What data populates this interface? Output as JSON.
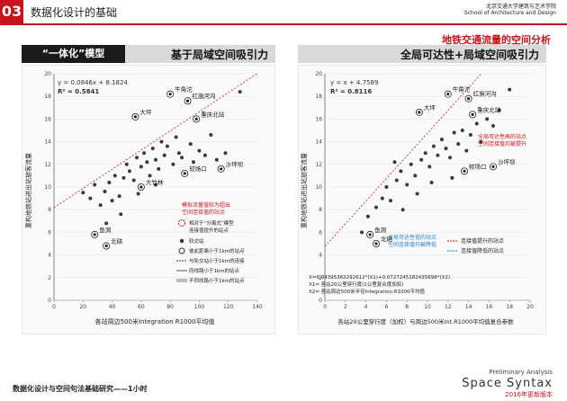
{
  "header": {
    "badge": "03",
    "title": "数据化设计的基础",
    "school_cn": "北京交通大学建筑与艺术学院",
    "school_en": "School of Architecture and Design"
  },
  "subtitle": "地铁交通流量的空间分析",
  "left_panel": {
    "tag": "“一体化”模型",
    "heading": "基于局域空间吸引力",
    "equation": "y = 0.0846x + 8.1824",
    "r2": "R² = 0.5841",
    "xlabel": "各站周边500米Integration R1000平均值",
    "ylabel": "重构地铁站进出站旅客流量",
    "annotation": [
      "模拟流量值较为超出",
      "空间连接值的站点"
    ],
    "legend": [
      "相对于“分离式”模型",
      "连接值提升的站点",
      "轨交站",
      "彼此距离小于1km的站点",
      "与轨交站小于1km的连接",
      "同线路小于1km的站点",
      "不同线路小于1km的站点"
    ]
  },
  "right_panel": {
    "heading": "全局可达性+局域空间吸引力",
    "equation": "y = x + 4.7589",
    "r2": "R² = 0.8116",
    "xlabel": "各站20公里穿行度（加权）与周边500米Int.R1000平均值复合参数",
    "ylabel": "重构地铁站进出站旅客流量",
    "ann_top": [
      "全局可达性高的站点",
      "空间连接值均被提升"
    ],
    "ann_bottom": [
      "全局可达性低的站点",
      "空间连接值均被降低"
    ],
    "legend_up": "连接值提升的站点",
    "legend_down": "连接值降低的站点",
    "formula": [
      "X=6.94395362292612*(X1)+0.0727245182435698*(X2)",
      "X1= 各站20公里穿行度(1公里复合度加权)",
      "X2= 各站周边500米半径Integration R1000平均值"
    ]
  },
  "footer": {
    "left": "数据化设计与空间句法基础研究——1小时",
    "prelim": "Preliminary Analysis",
    "brand": "Space Syntax",
    "version": "2016年更新版本"
  },
  "chart_data": [
    {
      "type": "scatter",
      "title": "基于局域空间吸引力",
      "xlabel": "各站周边500米Integration R1000平均值",
      "ylabel": "重构地铁站进出站旅客流量",
      "xlim": [
        0,
        140
      ],
      "ylim": [
        0,
        20
      ],
      "xticks": [
        0,
        20,
        40,
        60,
        80,
        100,
        120,
        140
      ],
      "yticks": [
        0,
        2,
        4,
        6,
        8,
        10,
        12,
        14,
        16,
        18,
        20
      ],
      "trendline": {
        "slope": 0.0846,
        "intercept": 8.1824
      },
      "labels": [
        {
          "text": "牛角沱",
          "x": 80,
          "y": 18.2
        },
        {
          "text": "红旗河沟",
          "x": 92,
          "y": 17.6
        },
        {
          "text": "大坪",
          "x": 56,
          "y": 16.2
        },
        {
          "text": "重庆北站",
          "x": 98,
          "y": 16.0
        },
        {
          "text": "较场口",
          "x": 90,
          "y": 11.2
        },
        {
          "text": "沙坪坝",
          "x": 115,
          "y": 11.6
        },
        {
          "text": "大竹林",
          "x": 60,
          "y": 10.0
        },
        {
          "text": "鱼洞",
          "x": 28,
          "y": 5.8
        },
        {
          "text": "北碚",
          "x": 36,
          "y": 4.8
        }
      ],
      "points": [
        {
          "x": 20,
          "y": 9.5
        },
        {
          "x": 25,
          "y": 9.0
        },
        {
          "x": 28,
          "y": 10.2
        },
        {
          "x": 32,
          "y": 8.4
        },
        {
          "x": 35,
          "y": 9.6
        },
        {
          "x": 38,
          "y": 10.4
        },
        {
          "x": 40,
          "y": 8.8
        },
        {
          "x": 42,
          "y": 11.0
        },
        {
          "x": 45,
          "y": 9.2
        },
        {
          "x": 48,
          "y": 10.8
        },
        {
          "x": 50,
          "y": 12.0
        },
        {
          "x": 52,
          "y": 11.4
        },
        {
          "x": 55,
          "y": 10.6
        },
        {
          "x": 57,
          "y": 12.6
        },
        {
          "x": 60,
          "y": 11.8
        },
        {
          "x": 62,
          "y": 13.0
        },
        {
          "x": 64,
          "y": 12.2
        },
        {
          "x": 66,
          "y": 11.0
        },
        {
          "x": 68,
          "y": 13.4
        },
        {
          "x": 70,
          "y": 12.4
        },
        {
          "x": 72,
          "y": 11.6
        },
        {
          "x": 74,
          "y": 14.0
        },
        {
          "x": 76,
          "y": 12.8
        },
        {
          "x": 78,
          "y": 13.6
        },
        {
          "x": 82,
          "y": 12.0
        },
        {
          "x": 84,
          "y": 14.4
        },
        {
          "x": 86,
          "y": 13.0
        },
        {
          "x": 88,
          "y": 12.6
        },
        {
          "x": 94,
          "y": 13.8
        },
        {
          "x": 96,
          "y": 12.2
        },
        {
          "x": 100,
          "y": 13.2
        },
        {
          "x": 104,
          "y": 12.8
        },
        {
          "x": 108,
          "y": 14.6
        },
        {
          "x": 112,
          "y": 12.4
        },
        {
          "x": 118,
          "y": 13.0
        },
        {
          "x": 128,
          "y": 18.4
        },
        {
          "x": 58,
          "y": 9.4
        },
        {
          "x": 46,
          "y": 7.6
        },
        {
          "x": 36,
          "y": 6.8
        },
        {
          "x": 70,
          "y": 10.2
        }
      ]
    },
    {
      "type": "scatter",
      "title": "全局可达性+局域空间吸引力",
      "xlabel": "各站20公里穿行度（加权）与周边500米Int.R1000平均值复合参数",
      "ylabel": "重构地铁站进出站旅客流量",
      "xlim": [
        0,
        20
      ],
      "ylim": [
        0,
        20
      ],
      "xticks": [
        0,
        2,
        4,
        6,
        8,
        10,
        12,
        14,
        16,
        18,
        20
      ],
      "yticks": [
        0,
        2,
        4,
        6,
        8,
        10,
        12,
        14,
        16,
        18,
        20
      ],
      "trendline": {
        "slope": 1,
        "intercept": 4.7589
      },
      "labels": [
        {
          "text": "牛角沱",
          "x": 12.0,
          "y": 18.2
        },
        {
          "text": "红旗河沟",
          "x": 14.0,
          "y": 17.8
        },
        {
          "text": "大坪",
          "x": 9.2,
          "y": 16.6
        },
        {
          "text": "重庆北站",
          "x": 14.4,
          "y": 16.4
        },
        {
          "text": "较场口",
          "x": 13.6,
          "y": 11.4
        },
        {
          "text": "沙坪坝",
          "x": 16.4,
          "y": 11.8
        },
        {
          "text": "鱼洞",
          "x": 4.4,
          "y": 5.8
        },
        {
          "text": "北碚",
          "x": 5.0,
          "y": 5.0
        }
      ],
      "points": [
        {
          "x": 3.6,
          "y": 6.0
        },
        {
          "x": 4.2,
          "y": 7.4
        },
        {
          "x": 5.0,
          "y": 8.2
        },
        {
          "x": 5.6,
          "y": 9.0
        },
        {
          "x": 6.0,
          "y": 10.0
        },
        {
          "x": 6.4,
          "y": 8.8
        },
        {
          "x": 7.0,
          "y": 10.6
        },
        {
          "x": 7.4,
          "y": 11.4
        },
        {
          "x": 8.0,
          "y": 10.2
        },
        {
          "x": 8.4,
          "y": 12.0
        },
        {
          "x": 8.8,
          "y": 11.0
        },
        {
          "x": 9.4,
          "y": 12.4
        },
        {
          "x": 9.8,
          "y": 13.0
        },
        {
          "x": 10.2,
          "y": 11.8
        },
        {
          "x": 10.6,
          "y": 13.6
        },
        {
          "x": 11.0,
          "y": 12.8
        },
        {
          "x": 11.4,
          "y": 14.2
        },
        {
          "x": 11.8,
          "y": 13.4
        },
        {
          "x": 12.2,
          "y": 12.6
        },
        {
          "x": 12.6,
          "y": 14.8
        },
        {
          "x": 13.0,
          "y": 13.8
        },
        {
          "x": 13.4,
          "y": 15.0
        },
        {
          "x": 13.8,
          "y": 13.2
        },
        {
          "x": 14.2,
          "y": 14.6
        },
        {
          "x": 14.8,
          "y": 15.6
        },
        {
          "x": 15.2,
          "y": 14.0
        },
        {
          "x": 15.8,
          "y": 16.0
        },
        {
          "x": 16.4,
          "y": 15.4
        },
        {
          "x": 17.0,
          "y": 16.8
        },
        {
          "x": 18.0,
          "y": 18.6
        },
        {
          "x": 7.6,
          "y": 8.0
        },
        {
          "x": 9.0,
          "y": 9.4
        },
        {
          "x": 10.4,
          "y": 10.4
        },
        {
          "x": 6.8,
          "y": 12.2
        },
        {
          "x": 12.4,
          "y": 10.8
        }
      ]
    }
  ]
}
